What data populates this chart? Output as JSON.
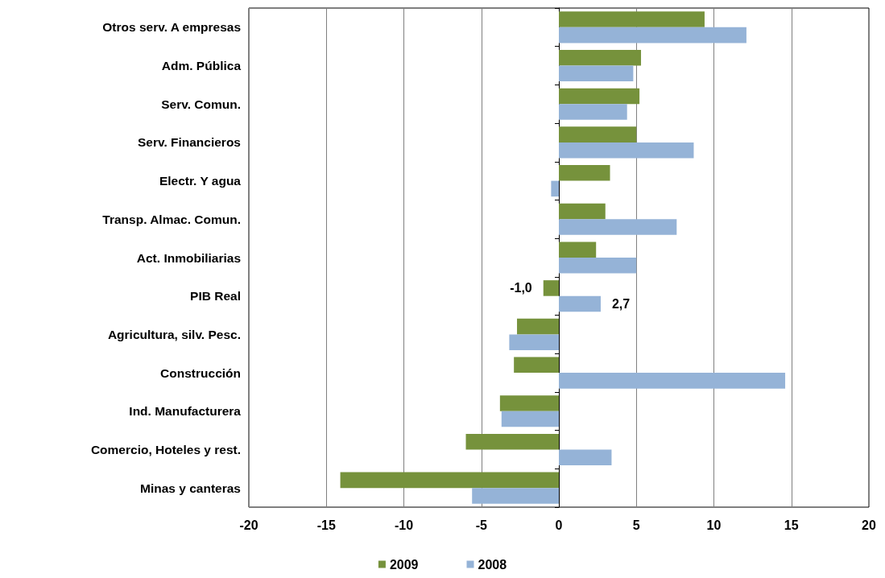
{
  "chart_data": {
    "type": "bar",
    "orientation": "horizontal",
    "categories": [
      "Otros serv. A empresas",
      "Adm. Pública",
      "Serv. Comun.",
      "Serv. Financieros",
      "Electr. Y agua",
      "Transp. Almac. Comun.",
      "Act. Inmobiliarias",
      "PIB Real",
      "Agricultura, silv. Pesc.",
      "Construcción",
      "Ind. Manufacturera",
      "Comercio, Hoteles y rest.",
      "Minas y canteras"
    ],
    "series": [
      {
        "name": "2009",
        "color": "#76923c",
        "values": [
          9.4,
          5.3,
          5.2,
          5.0,
          3.3,
          3.0,
          2.4,
          -1.0,
          -2.7,
          -2.9,
          -3.8,
          -6.0,
          -14.1
        ],
        "value_labels": [
          null,
          null,
          null,
          null,
          null,
          null,
          null,
          "-1,0",
          null,
          null,
          null,
          null,
          null
        ]
      },
      {
        "name": "2008",
        "color": "#95b3d7",
        "values": [
          12.1,
          4.8,
          4.4,
          8.7,
          -0.5,
          7.6,
          5.0,
          2.7,
          -3.2,
          14.6,
          -3.7,
          3.4,
          -5.6
        ],
        "value_labels": [
          null,
          null,
          null,
          null,
          null,
          null,
          null,
          "2,7",
          null,
          null,
          null,
          null,
          null
        ]
      }
    ],
    "xlim": [
      -20,
      20
    ],
    "xticks": [
      -20,
      -15,
      -10,
      -5,
      0,
      5,
      10,
      15,
      20
    ],
    "grid": "x",
    "legend": "bottom"
  }
}
